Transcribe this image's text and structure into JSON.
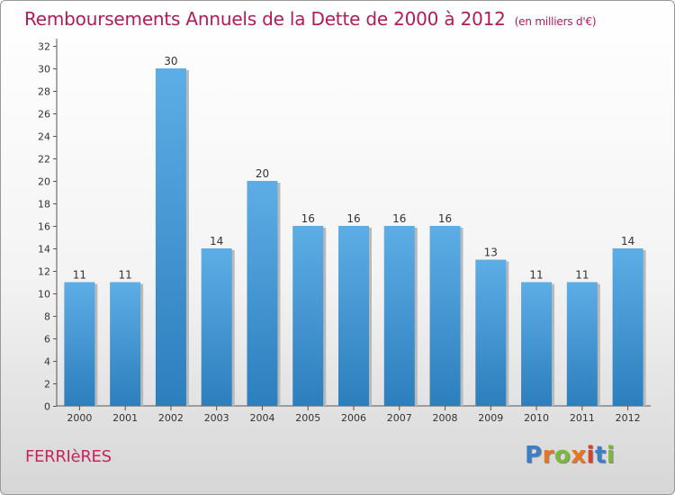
{
  "header": {
    "title": "Remboursements Annuels de la Dette de 2000 à 2012",
    "subtitle": "(en milliers d'€)"
  },
  "footer": {
    "city": "FERRIèRES",
    "brand": "Proxiti"
  },
  "colors": {
    "title": "#b01c5a",
    "bar_top": "#5dade6",
    "bar_bottom": "#2c7fbd",
    "city": "#c8245e",
    "logo_letters": [
      "#3a7fc8",
      "#e8761f",
      "#7cb83a",
      "#e8761f",
      "#d6432b",
      "#3a7fc8",
      "#7cb83a"
    ]
  },
  "chart_data": {
    "type": "bar",
    "categories": [
      "2000",
      "2001",
      "2002",
      "2003",
      "2004",
      "2005",
      "2006",
      "2007",
      "2008",
      "2009",
      "2010",
      "2011",
      "2012"
    ],
    "values": [
      11,
      11,
      30,
      14,
      20,
      16,
      16,
      16,
      16,
      13,
      11,
      11,
      14
    ],
    "ylim": [
      0,
      32
    ],
    "yticks": [
      0,
      2,
      4,
      6,
      8,
      10,
      12,
      14,
      16,
      18,
      20,
      22,
      24,
      26,
      28,
      30,
      32
    ],
    "grid": false,
    "data_labels": true
  }
}
